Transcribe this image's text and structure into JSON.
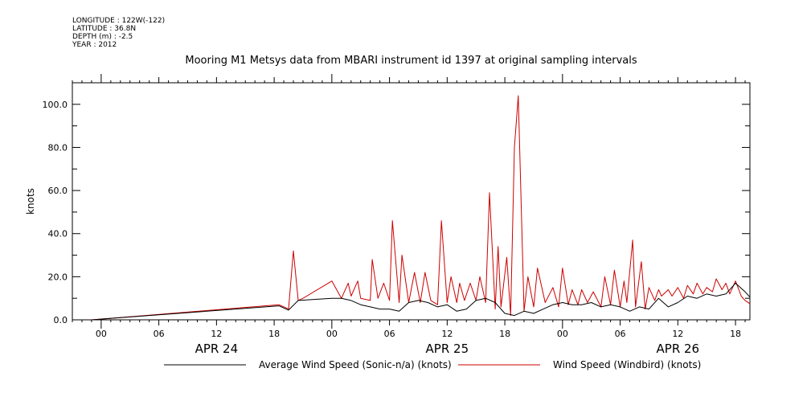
{
  "meta": {
    "longitude": "LONGITUDE : 122W(-122)",
    "latitude": "LATITUDE : 36.8N",
    "depth": "DEPTH (m) : -2.5",
    "year": "YEAR : 2012"
  },
  "chart_data": {
    "type": "line",
    "title": "Mooring M1 Metsys data from MBARI instrument id 1397 at original sampling intervals",
    "ylabel": "knots",
    "xlabel": "",
    "x_unit": "hours since APR 24 00:00 (2012)",
    "xlim": [
      -3,
      67.5
    ],
    "ylim": [
      0,
      110
    ],
    "y_ticks": [
      0,
      20,
      40,
      60,
      80,
      100
    ],
    "y_tick_labels": [
      "0.0",
      "20.0",
      "40.0",
      "60.0",
      "80.0",
      "100.0"
    ],
    "x_ticks": [
      0,
      6,
      12,
      18,
      24,
      30,
      36,
      42,
      48,
      54,
      60,
      66
    ],
    "x_tick_labels": [
      "00",
      "06",
      "12",
      "18",
      "00",
      "06",
      "12",
      "18",
      "00",
      "06",
      "12",
      "18"
    ],
    "day_labels": [
      {
        "x": 12,
        "label": "APR 24"
      },
      {
        "x": 36,
        "label": "APR 25"
      },
      {
        "x": 60,
        "label": "APR 26"
      }
    ],
    "grid": false,
    "legend_position": "bottom",
    "series": [
      {
        "name": "Average Wind Speed (Sonic-n/a) (knots)",
        "color": "#000000",
        "x": [
          -1,
          18.5,
          19.5,
          20.5,
          24,
          25,
          26,
          27,
          28,
          29,
          30,
          31,
          32,
          33,
          34,
          35,
          36,
          37,
          38,
          39,
          40,
          41,
          42,
          43,
          44,
          45,
          46,
          47,
          48,
          49,
          50,
          51,
          52,
          53,
          54,
          55,
          56,
          57,
          58,
          59,
          60,
          61,
          62,
          63,
          64,
          65,
          66,
          67,
          67.5
        ],
        "y": [
          0,
          6.5,
          4.5,
          9,
          10,
          10,
          9,
          7,
          6,
          5,
          5,
          4,
          8,
          9,
          8,
          6,
          7,
          4,
          5,
          9,
          10,
          8,
          3,
          2,
          4,
          3,
          5,
          7,
          8,
          7,
          7,
          8,
          6,
          7,
          6,
          4,
          6,
          5,
          10,
          6,
          8,
          11,
          10,
          12,
          11,
          12,
          17,
          13,
          10.5
        ]
      },
      {
        "name": "Wind Speed (Windbird) (knots)",
        "color": "#cc0000",
        "x": [
          -1,
          18.5,
          19.5,
          20,
          20.5,
          21,
          24,
          25,
          25.7,
          26,
          26.7,
          27,
          28,
          28.2,
          28.8,
          29.4,
          30,
          30.3,
          31,
          31.3,
          32,
          32.6,
          33.2,
          33.7,
          34.3,
          35,
          35.4,
          36,
          36.4,
          37,
          37.3,
          37.8,
          38.4,
          39,
          39.4,
          40,
          40.4,
          41,
          41.3,
          41.6,
          42.2,
          42.6,
          43,
          43.4,
          44,
          44.4,
          45,
          45.4,
          46.2,
          47,
          47.6,
          48,
          48.6,
          49,
          49.6,
          50,
          50.6,
          51.2,
          52,
          52.4,
          53,
          53.4,
          54,
          54.4,
          54.7,
          55.3,
          55.6,
          56.2,
          56.6,
          57,
          57.6,
          58,
          58.3,
          59,
          59.4,
          60,
          60.6,
          61,
          61.6,
          62,
          62.6,
          63,
          63.6,
          64,
          64.6,
          65,
          65.4,
          66,
          66.6,
          67,
          67.5
        ],
        "y": [
          0,
          7,
          5,
          32,
          9,
          10,
          18,
          10,
          17,
          11,
          18,
          10,
          9,
          28,
          10,
          17,
          9,
          46,
          8,
          30,
          8,
          22,
          8,
          22,
          9,
          7,
          46,
          8,
          20,
          8,
          17,
          9,
          17,
          9,
          20,
          8,
          59,
          5,
          34,
          6,
          29,
          2,
          80,
          104,
          4,
          20,
          6,
          24,
          8,
          15,
          6,
          24,
          7,
          14,
          7,
          14,
          8,
          13,
          6,
          20,
          7,
          23,
          6,
          18,
          8,
          37,
          6,
          27,
          5,
          15,
          9,
          14,
          11,
          14,
          11,
          15,
          10,
          16,
          12,
          17,
          12,
          15,
          13,
          19,
          14,
          17,
          12,
          18,
          11,
          9,
          7.5
        ]
      }
    ]
  }
}
